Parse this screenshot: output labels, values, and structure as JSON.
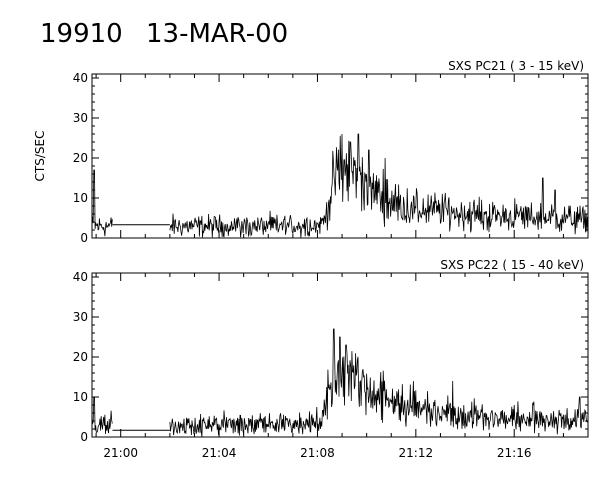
{
  "header": {
    "event_id": "19910",
    "date": "13-MAR-00"
  },
  "chart_data": [
    {
      "type": "line",
      "panel_label": "SXS PC21  (  3 - 15 keV)",
      "ylabel": "CTS/SEC",
      "xlabel": "",
      "ylim": [
        0,
        41
      ],
      "yticks": [
        0,
        10,
        20,
        30,
        40
      ],
      "xlim": [
        "20:58:50",
        "21:19:00"
      ],
      "xticks": [
        "21:00",
        "21:04",
        "21:08",
        "21:12",
        "21:16"
      ],
      "x_tick_labels_shown": false,
      "grid": false,
      "data_gap": {
        "from": "20:59:40",
        "to": "21:02:00",
        "level": 3.3
      },
      "series": [
        {
          "keyframes": [
            [
              "20:58:50",
              3
            ],
            [
              "20:59:35",
              3
            ],
            [
              "21:02:00",
              3
            ],
            [
              "21:04:00",
              3
            ],
            [
              "21:06:00",
              3
            ],
            [
              "21:08:00",
              3.2
            ],
            [
              "21:08:15",
              4
            ],
            [
              "21:08:30",
              10
            ],
            [
              "21:08:45",
              16
            ],
            [
              "21:09:15",
              17
            ],
            [
              "21:09:45",
              16
            ],
            [
              "21:10:15",
              12
            ],
            [
              "21:11:00",
              9
            ],
            [
              "21:12:00",
              7
            ],
            [
              "21:13:00",
              7
            ],
            [
              "21:14:00",
              6
            ],
            [
              "21:15:00",
              5.5
            ],
            [
              "21:16:00",
              5.5
            ],
            [
              "21:17:00",
              5
            ],
            [
              "21:18:00",
              5
            ],
            [
              "21:19:00",
              4.5
            ]
          ],
          "spikes": [
            [
              "20:58:55",
              17
            ],
            [
              "21:09:00",
              26
            ],
            [
              "21:09:20",
              24
            ],
            [
              "21:09:40",
              26
            ],
            [
              "21:10:05",
              22
            ],
            [
              "21:10:45",
              20
            ],
            [
              "21:17:10",
              15
            ],
            [
              "21:17:40",
              12
            ]
          ]
        }
      ]
    },
    {
      "type": "line",
      "panel_label": "SXS PC22  ( 15 - 40 keV)",
      "ylabel": "",
      "xlabel": "",
      "ylim": [
        0,
        41
      ],
      "yticks": [
        0,
        10,
        20,
        30,
        40
      ],
      "xlim": [
        "20:58:50",
        "21:19:00"
      ],
      "xticks": [
        "21:00",
        "21:04",
        "21:08",
        "21:12",
        "21:16"
      ],
      "x_tick_labels_shown": true,
      "grid": false,
      "data_gap": {
        "from": "20:59:40",
        "to": "21:02:00",
        "level": 1.7
      },
      "series": [
        {
          "keyframes": [
            [
              "20:58:50",
              3
            ],
            [
              "20:59:35",
              3
            ],
            [
              "21:02:00",
              3
            ],
            [
              "21:04:00",
              3
            ],
            [
              "21:06:00",
              3.2
            ],
            [
              "21:08:00",
              3.5
            ],
            [
              "21:08:15",
              6
            ],
            [
              "21:08:30",
              14
            ],
            [
              "21:08:45",
              17
            ],
            [
              "21:09:15",
              16.5
            ],
            [
              "21:09:45",
              14
            ],
            [
              "21:10:15",
              11
            ],
            [
              "21:11:00",
              9
            ],
            [
              "21:12:00",
              7.5
            ],
            [
              "21:13:00",
              6.5
            ],
            [
              "21:14:00",
              5.5
            ],
            [
              "21:15:00",
              5
            ],
            [
              "21:16:00",
              4.5
            ],
            [
              "21:17:00",
              4.5
            ],
            [
              "21:18:00",
              4.5
            ],
            [
              "21:19:00",
              4
            ]
          ],
          "spikes": [
            [
              "20:58:55",
              10
            ],
            [
              "21:08:40",
              27
            ],
            [
              "21:08:55",
              25
            ],
            [
              "21:09:10",
              23
            ],
            [
              "21:13:30",
              14
            ],
            [
              "21:18:40",
              10
            ]
          ]
        }
      ]
    }
  ]
}
